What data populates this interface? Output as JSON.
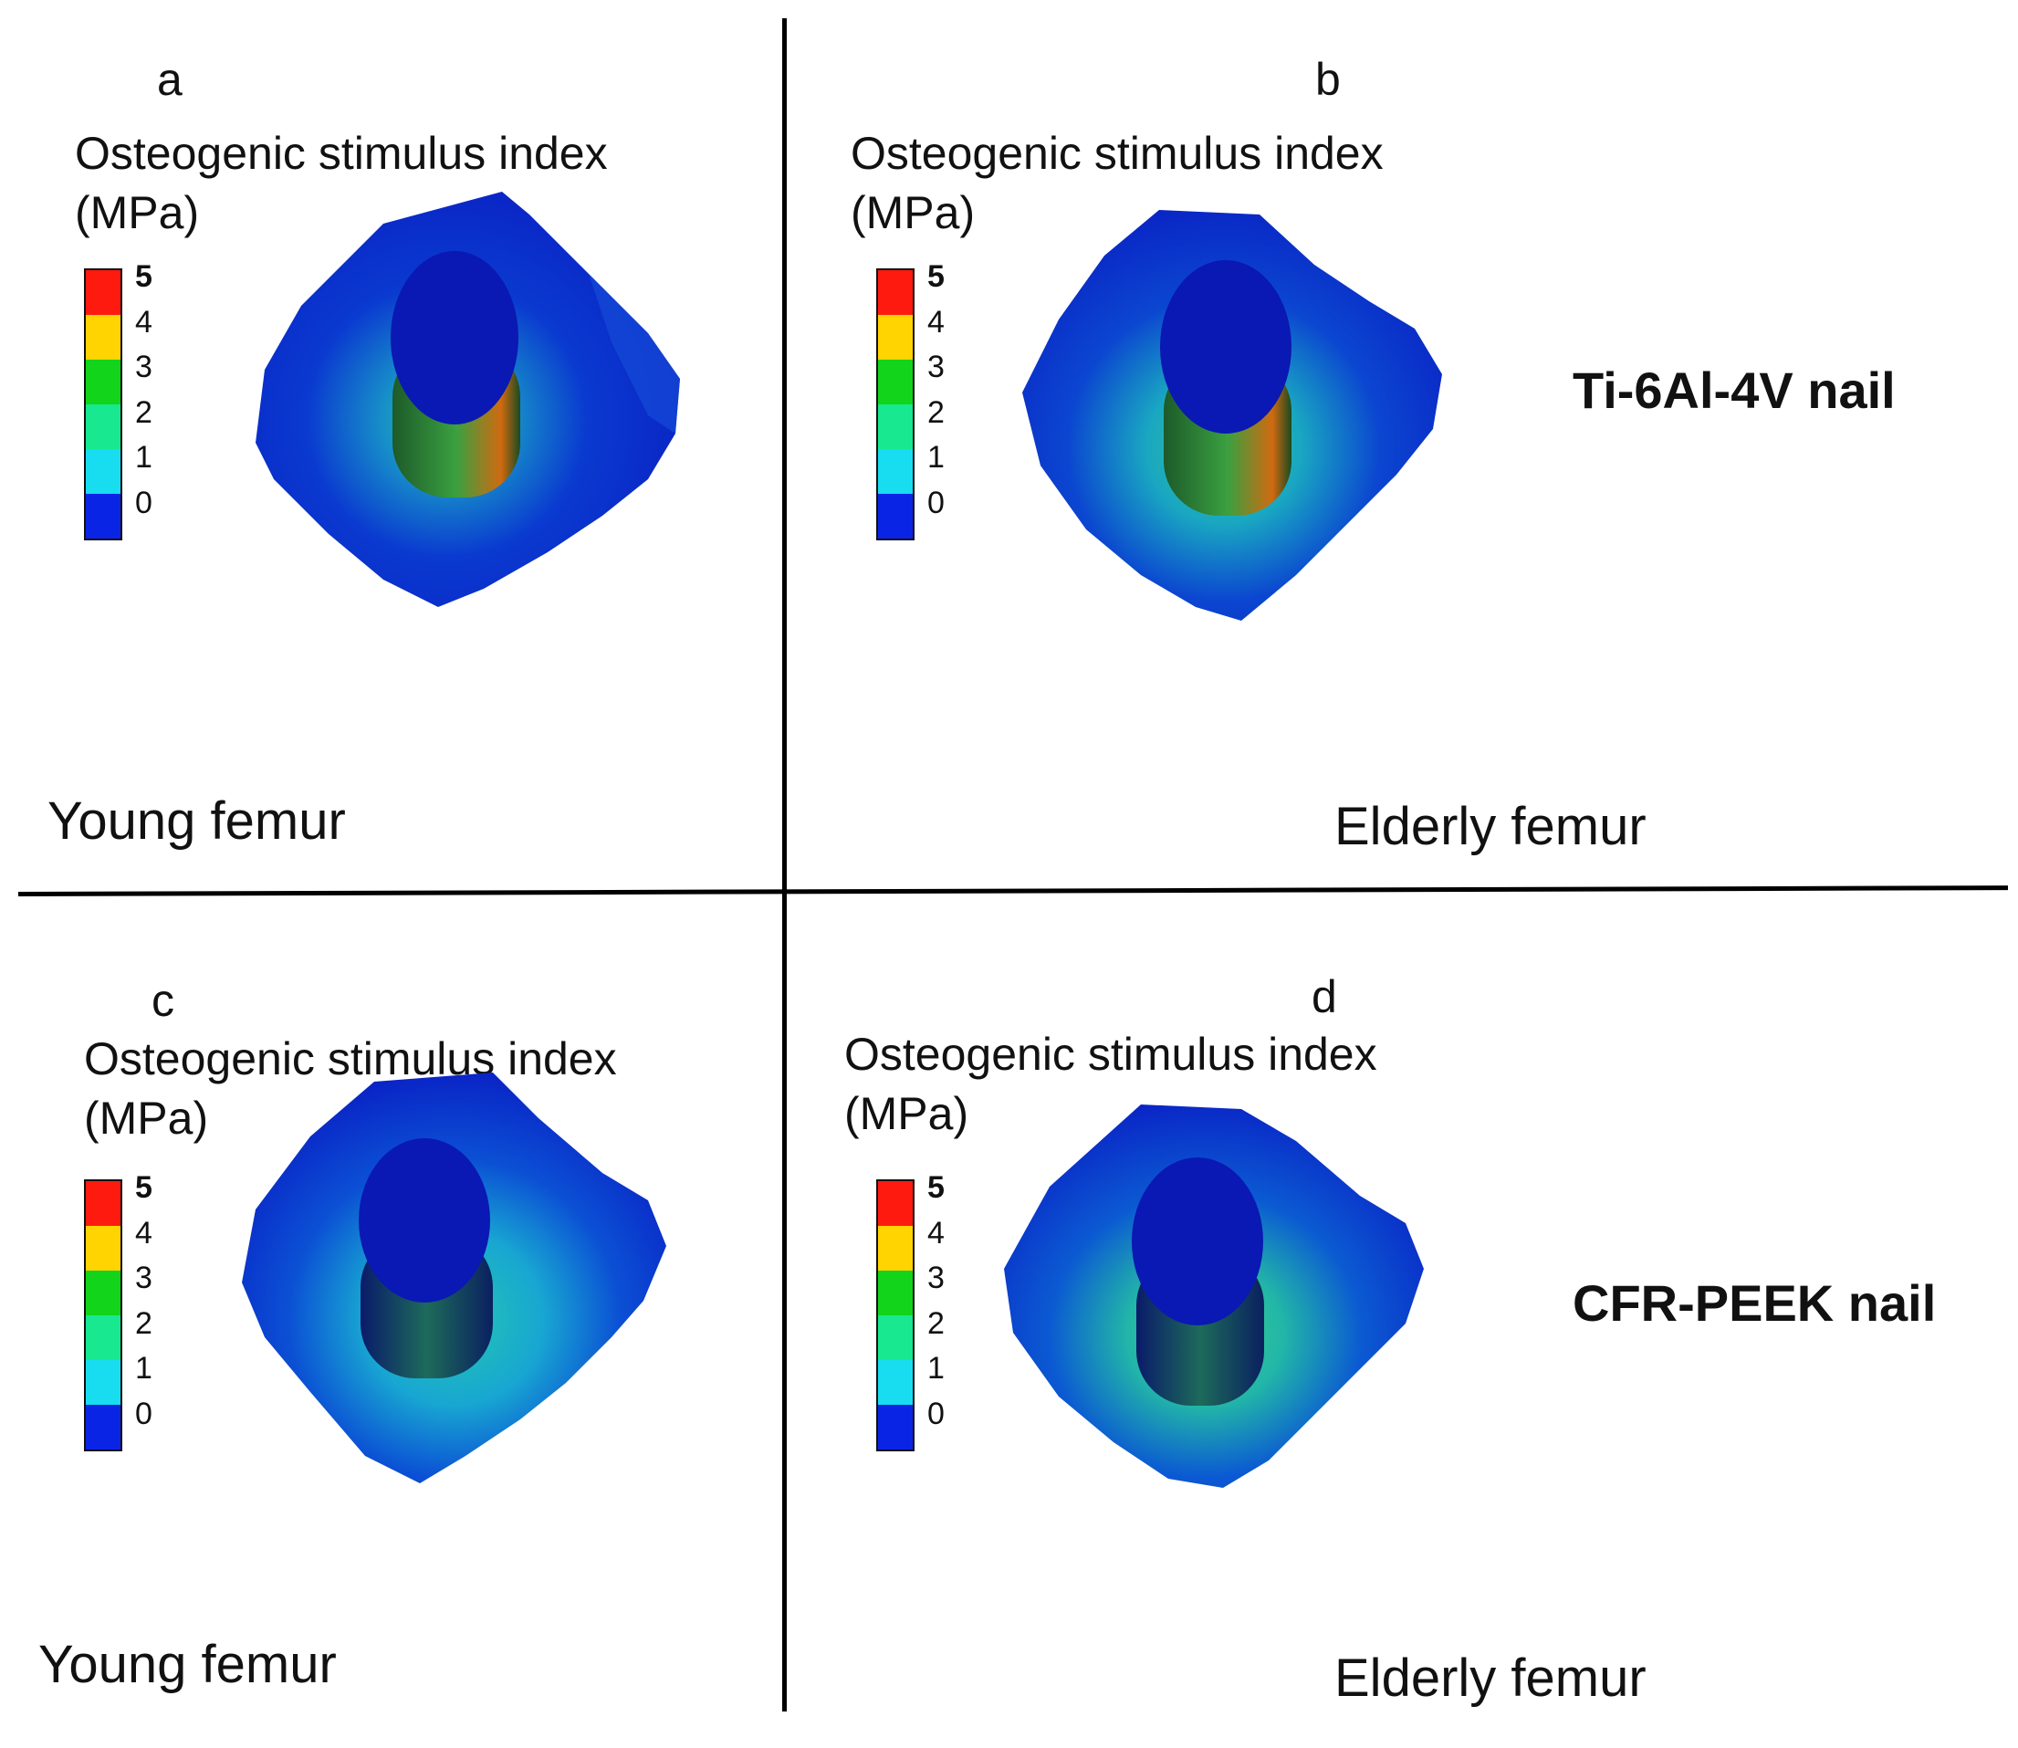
{
  "legend_title_line1": "Osteogenic stimulus index",
  "legend_title_line2": "(MPa)",
  "legend_ticks": [
    "5",
    "4",
    "3",
    "2",
    "1",
    "0"
  ],
  "legend_colors": [
    "#ff1a10",
    "#ffd400",
    "#12d41a",
    "#18e890",
    "#18dcf0",
    "#0a24e6"
  ],
  "panels": [
    {
      "letter": "a",
      "caption": "Young femur"
    },
    {
      "letter": "b",
      "caption": "Elderly femur"
    },
    {
      "letter": "c",
      "caption": "Young femur"
    },
    {
      "letter": "d",
      "caption": "Elderly femur"
    }
  ],
  "materials": {
    "row1": "Ti-6Al-4V nail",
    "row2": "CFR-PEEK nail"
  },
  "colors": {
    "bone_low": "#0a24c8",
    "bone_mid": "#1aa0c0",
    "nail_top": "#0a18b4"
  }
}
